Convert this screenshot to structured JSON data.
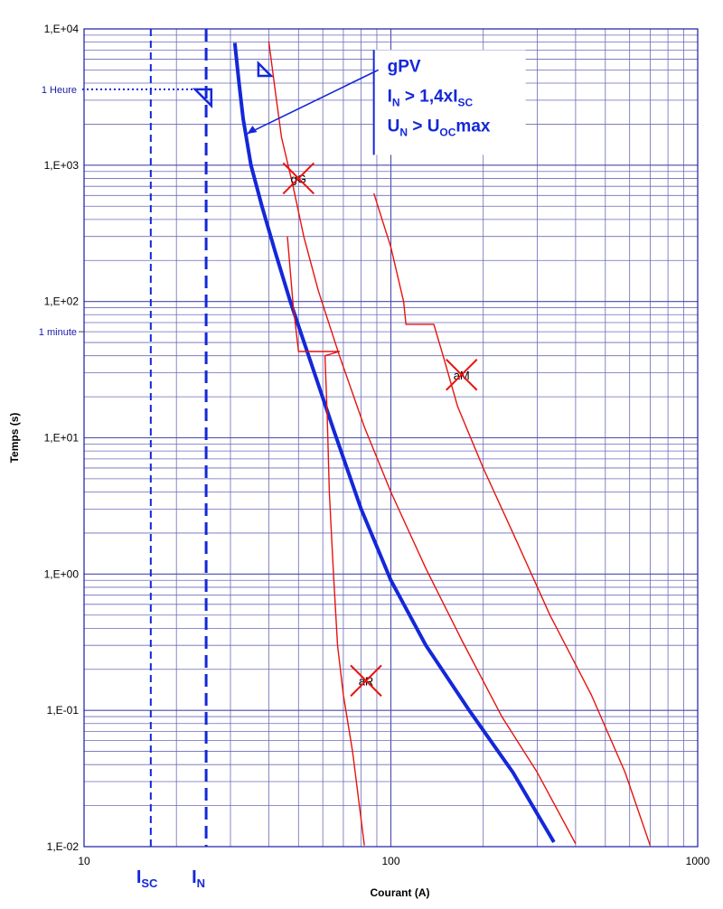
{
  "chart_data": {
    "type": "line",
    "x_scale": "log",
    "y_scale": "log",
    "xlim": [
      10,
      1000
    ],
    "ylim": [
      0.01,
      10000
    ],
    "xlabel": "Courant (A)",
    "ylabel": "Temps  (s)",
    "x_ticks": [
      {
        "value": 10,
        "label": "10"
      },
      {
        "value": 100,
        "label": "100"
      },
      {
        "value": 1000,
        "label": "1000"
      }
    ],
    "y_ticks": [
      {
        "value": 10000,
        "label": "1,E+04"
      },
      {
        "value": 1000,
        "label": "1,E+03"
      },
      {
        "value": 100,
        "label": "1,E+02"
      },
      {
        "value": 10,
        "label": "1,E+01"
      },
      {
        "value": 1,
        "label": "1,E+00"
      },
      {
        "value": 0.1,
        "label": "1,E-01"
      },
      {
        "value": 0.01,
        "label": "1,E-02"
      }
    ],
    "time_markers": [
      {
        "label": "1 Heure",
        "value": 3600,
        "leader_to_current": 24
      },
      {
        "label": "1 minute",
        "value": 60
      }
    ],
    "grid": true,
    "series": [
      {
        "name": "gPV",
        "color": "#1428d8",
        "points": [
          [
            31,
            7900
          ],
          [
            32,
            4000
          ],
          [
            33,
            2200
          ],
          [
            35,
            1000
          ],
          [
            38,
            500
          ],
          [
            42,
            230
          ],
          [
            47,
            100
          ],
          [
            55,
            35
          ],
          [
            65,
            11.5
          ],
          [
            80,
            3
          ],
          [
            100,
            0.9
          ],
          [
            130,
            0.3
          ],
          [
            180,
            0.1
          ],
          [
            250,
            0.035
          ],
          [
            340,
            0.0108
          ]
        ]
      },
      {
        "name": "gG",
        "color": "#e8120c",
        "points": [
          [
            40,
            8100
          ],
          [
            42,
            3500
          ],
          [
            44,
            1600
          ],
          [
            48,
            700
          ],
          [
            52,
            300
          ],
          [
            58,
            120
          ],
          [
            68,
            40
          ],
          [
            82,
            12
          ],
          [
            100,
            4
          ],
          [
            130,
            1.1
          ],
          [
            170,
            0.33
          ],
          [
            230,
            0.09
          ],
          [
            300,
            0.035
          ],
          [
            400,
            0.0105
          ]
        ]
      },
      {
        "name": "aM",
        "color": "#e8120c",
        "points": [
          [
            88,
            620
          ],
          [
            100,
            250
          ],
          [
            110,
            100
          ],
          [
            112,
            68
          ],
          [
            138,
            68
          ],
          [
            148,
            40
          ],
          [
            165,
            17
          ],
          [
            200,
            6
          ],
          [
            250,
            2
          ],
          [
            330,
            0.5
          ],
          [
            450,
            0.13
          ],
          [
            580,
            0.035
          ],
          [
            700,
            0.0102
          ]
        ]
      },
      {
        "name": "aR",
        "color": "#e8120c",
        "points": [
          [
            46,
            300
          ],
          [
            48,
            95
          ],
          [
            50,
            43
          ],
          [
            68,
            43
          ],
          [
            61,
            40
          ],
          [
            62,
            15
          ],
          [
            63,
            4
          ],
          [
            65,
            1
          ],
          [
            67,
            0.3
          ],
          [
            70,
            0.13
          ],
          [
            75,
            0.05
          ],
          [
            82,
            0.0102
          ]
        ]
      }
    ],
    "crossed_out": [
      {
        "label": "gG",
        "x": 50,
        "y": 800
      },
      {
        "label": "aM",
        "x": 170,
        "y": 29
      },
      {
        "label": "aR",
        "x": 83,
        "y": 0.165
      }
    ],
    "annotation": {
      "title": "gPV",
      "line1": {
        "main": "I",
        "sub": "N",
        "rest": " > 1,4xI",
        "sub2": "SC"
      },
      "line2": {
        "main": "U",
        "sub": "N",
        "rest": " > U",
        "sub2": "OC",
        "rest2": "max"
      }
    },
    "vertical_markers": [
      {
        "label": "I",
        "sub": "SC",
        "x": 16.5,
        "style": "dashed-thin"
      },
      {
        "label": "I",
        "sub": "N",
        "x": 25,
        "style": "dashed-thick"
      }
    ]
  }
}
